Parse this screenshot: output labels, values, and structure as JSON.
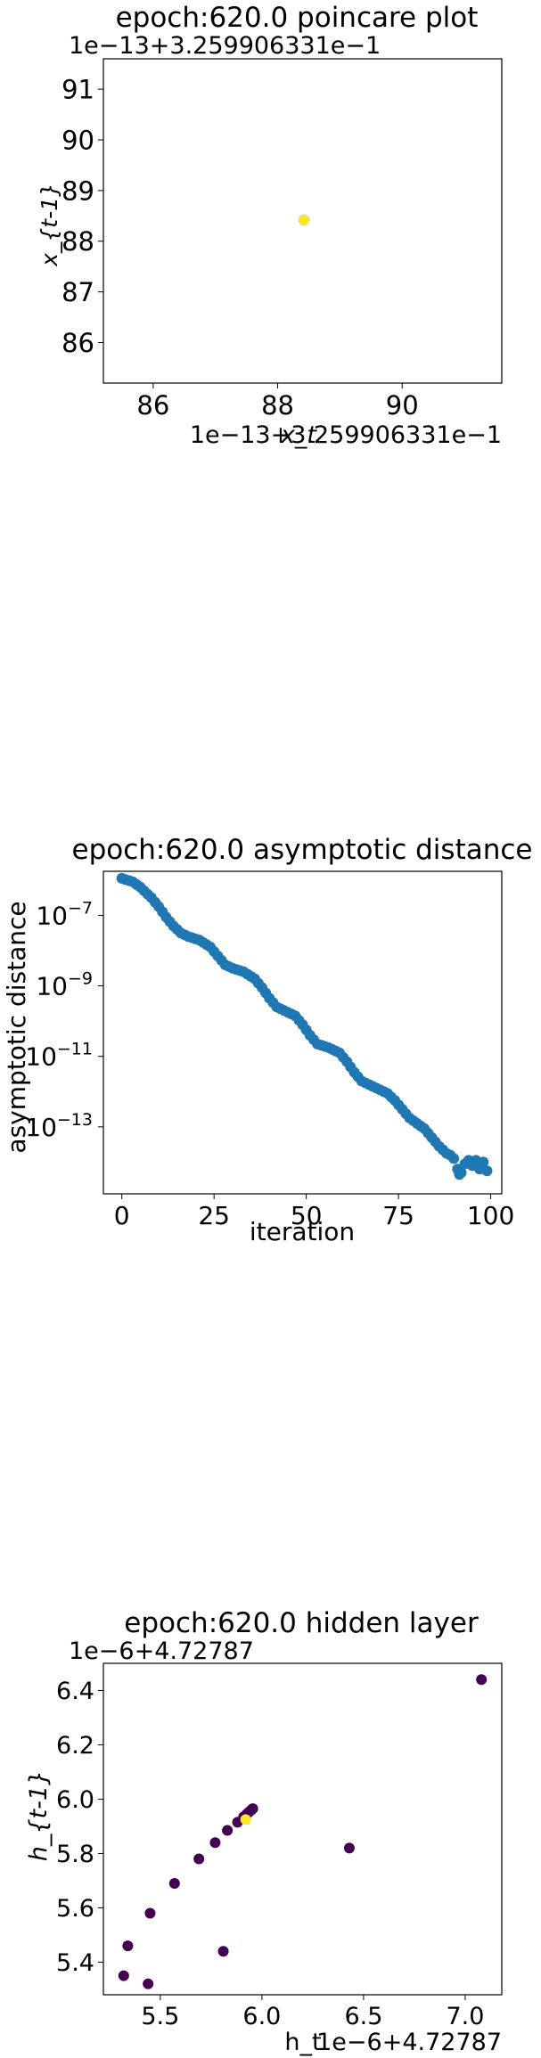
{
  "chart_data": [
    {
      "type": "scatter",
      "title": "epoch:620.0 poincare plot",
      "xlabel": "x_t",
      "ylabel": "x_{t-1}",
      "x_offset_label": "1e−13+3.259906331e−1",
      "y_offset_label": "1e−13+3.259906331e−1",
      "xlim": [
        85.2,
        91.6
      ],
      "ylim": [
        85.2,
        91.6
      ],
      "xticks": [
        86,
        88,
        90
      ],
      "xtick_labels": [
        "86",
        "88",
        "90"
      ],
      "yticks": [
        86,
        87,
        88,
        89,
        90,
        91
      ],
      "ytick_labels": [
        "86",
        "87",
        "88",
        "89",
        "90",
        "91"
      ],
      "points": [
        {
          "x": 88.42,
          "y": 88.42,
          "color": "#440154"
        },
        {
          "x": 88.42,
          "y": 88.42,
          "color": "#fde725"
        }
      ]
    },
    {
      "type": "scatter",
      "title": "epoch:620.0 asymptotic distance",
      "xlabel": "iteration",
      "ylabel": "asymptotic distance",
      "xlim": [
        -5,
        103
      ],
      "ylim_log10": [
        -14.9,
        -5.75
      ],
      "yscale": "log",
      "xticks": [
        0,
        25,
        50,
        75,
        100
      ],
      "xtick_labels": [
        "0",
        "25",
        "50",
        "75",
        "100"
      ],
      "yticks_exp": [
        -7,
        -9,
        -11,
        -13
      ],
      "color": "#1f77b4",
      "anchors": [
        [
          0,
          -5.95
        ],
        [
          3,
          -6.05
        ],
        [
          5,
          -6.2
        ],
        [
          8,
          -6.5
        ],
        [
          10,
          -6.75
        ],
        [
          12,
          -7.05
        ],
        [
          14,
          -7.3
        ],
        [
          16,
          -7.5
        ],
        [
          18,
          -7.6
        ],
        [
          21,
          -7.7
        ],
        [
          24,
          -7.9
        ],
        [
          26,
          -8.15
        ],
        [
          28,
          -8.4
        ],
        [
          30,
          -8.5
        ],
        [
          33,
          -8.6
        ],
        [
          36,
          -8.8
        ],
        [
          38,
          -9.05
        ],
        [
          40,
          -9.35
        ],
        [
          42,
          -9.6
        ],
        [
          44,
          -9.7
        ],
        [
          47,
          -9.85
        ],
        [
          49,
          -10.1
        ],
        [
          51,
          -10.4
        ],
        [
          53,
          -10.65
        ],
        [
          56,
          -10.75
        ],
        [
          59,
          -10.9
        ],
        [
          61,
          -11.15
        ],
        [
          63,
          -11.45
        ],
        [
          65,
          -11.7
        ],
        [
          68,
          -11.85
        ],
        [
          70,
          -11.95
        ],
        [
          72,
          -12.05
        ],
        [
          74,
          -12.25
        ],
        [
          76,
          -12.5
        ],
        [
          78,
          -12.75
        ],
        [
          80,
          -12.9
        ],
        [
          82,
          -13.05
        ],
        [
          84,
          -13.3
        ],
        [
          86,
          -13.55
        ],
        [
          88,
          -13.75
        ],
        [
          89,
          -13.8
        ],
        [
          90,
          -13.9
        ]
      ],
      "tail": [
        [
          91,
          -14.2
        ],
        [
          91.5,
          -14.35
        ],
        [
          92,
          -14.3
        ],
        [
          93,
          -14.05
        ],
        [
          94,
          -13.95
        ],
        [
          95,
          -14.1
        ],
        [
          96,
          -13.95
        ],
        [
          97,
          -14.2
        ],
        [
          98,
          -14.0
        ],
        [
          99,
          -14.25
        ]
      ]
    },
    {
      "type": "scatter",
      "title": "epoch:620.0 hidden layer",
      "xlabel": "h_t",
      "ylabel": "h_{t-1}",
      "x_offset_label": "1e−6+4.72787",
      "y_offset_label": "1e−6+4.72787",
      "xlim": [
        5.22,
        7.18
      ],
      "ylim": [
        5.28,
        6.5
      ],
      "xticks": [
        5.5,
        6.0,
        6.5,
        7.0
      ],
      "xtick_labels": [
        "5.5",
        "6.0",
        "6.5",
        "7.0"
      ],
      "yticks": [
        5.4,
        5.6,
        5.8,
        6.0,
        6.2,
        6.4
      ],
      "ytick_labels": [
        "5.4",
        "5.6",
        "5.8",
        "6.0",
        "6.2",
        "6.4"
      ],
      "points": [
        {
          "x": 7.08,
          "y": 6.44,
          "color": "#440154"
        },
        {
          "x": 6.43,
          "y": 5.82,
          "color": "#440154"
        },
        {
          "x": 5.81,
          "y": 5.44,
          "color": "#440154"
        },
        {
          "x": 5.32,
          "y": 5.35,
          "color": "#440154"
        },
        {
          "x": 5.34,
          "y": 5.46,
          "color": "#440154"
        },
        {
          "x": 5.44,
          "y": 5.32,
          "color": "#440154"
        },
        {
          "x": 5.45,
          "y": 5.58,
          "color": "#440154"
        },
        {
          "x": 5.57,
          "y": 5.69,
          "color": "#440154"
        },
        {
          "x": 5.69,
          "y": 5.78,
          "color": "#440154"
        },
        {
          "x": 5.77,
          "y": 5.84,
          "color": "#440154"
        },
        {
          "x": 5.83,
          "y": 5.885,
          "color": "#440154"
        },
        {
          "x": 5.88,
          "y": 5.915,
          "color": "#440154"
        },
        {
          "x": 5.91,
          "y": 5.935,
          "color": "#440154"
        },
        {
          "x": 5.925,
          "y": 5.945,
          "color": "#440154"
        },
        {
          "x": 5.935,
          "y": 5.952,
          "color": "#440154"
        },
        {
          "x": 5.945,
          "y": 5.958,
          "color": "#440154"
        },
        {
          "x": 5.95,
          "y": 5.962,
          "color": "#440154"
        },
        {
          "x": 5.955,
          "y": 5.965,
          "color": "#440154"
        },
        {
          "x": 5.92,
          "y": 5.925,
          "color": "#fde725"
        }
      ]
    }
  ]
}
